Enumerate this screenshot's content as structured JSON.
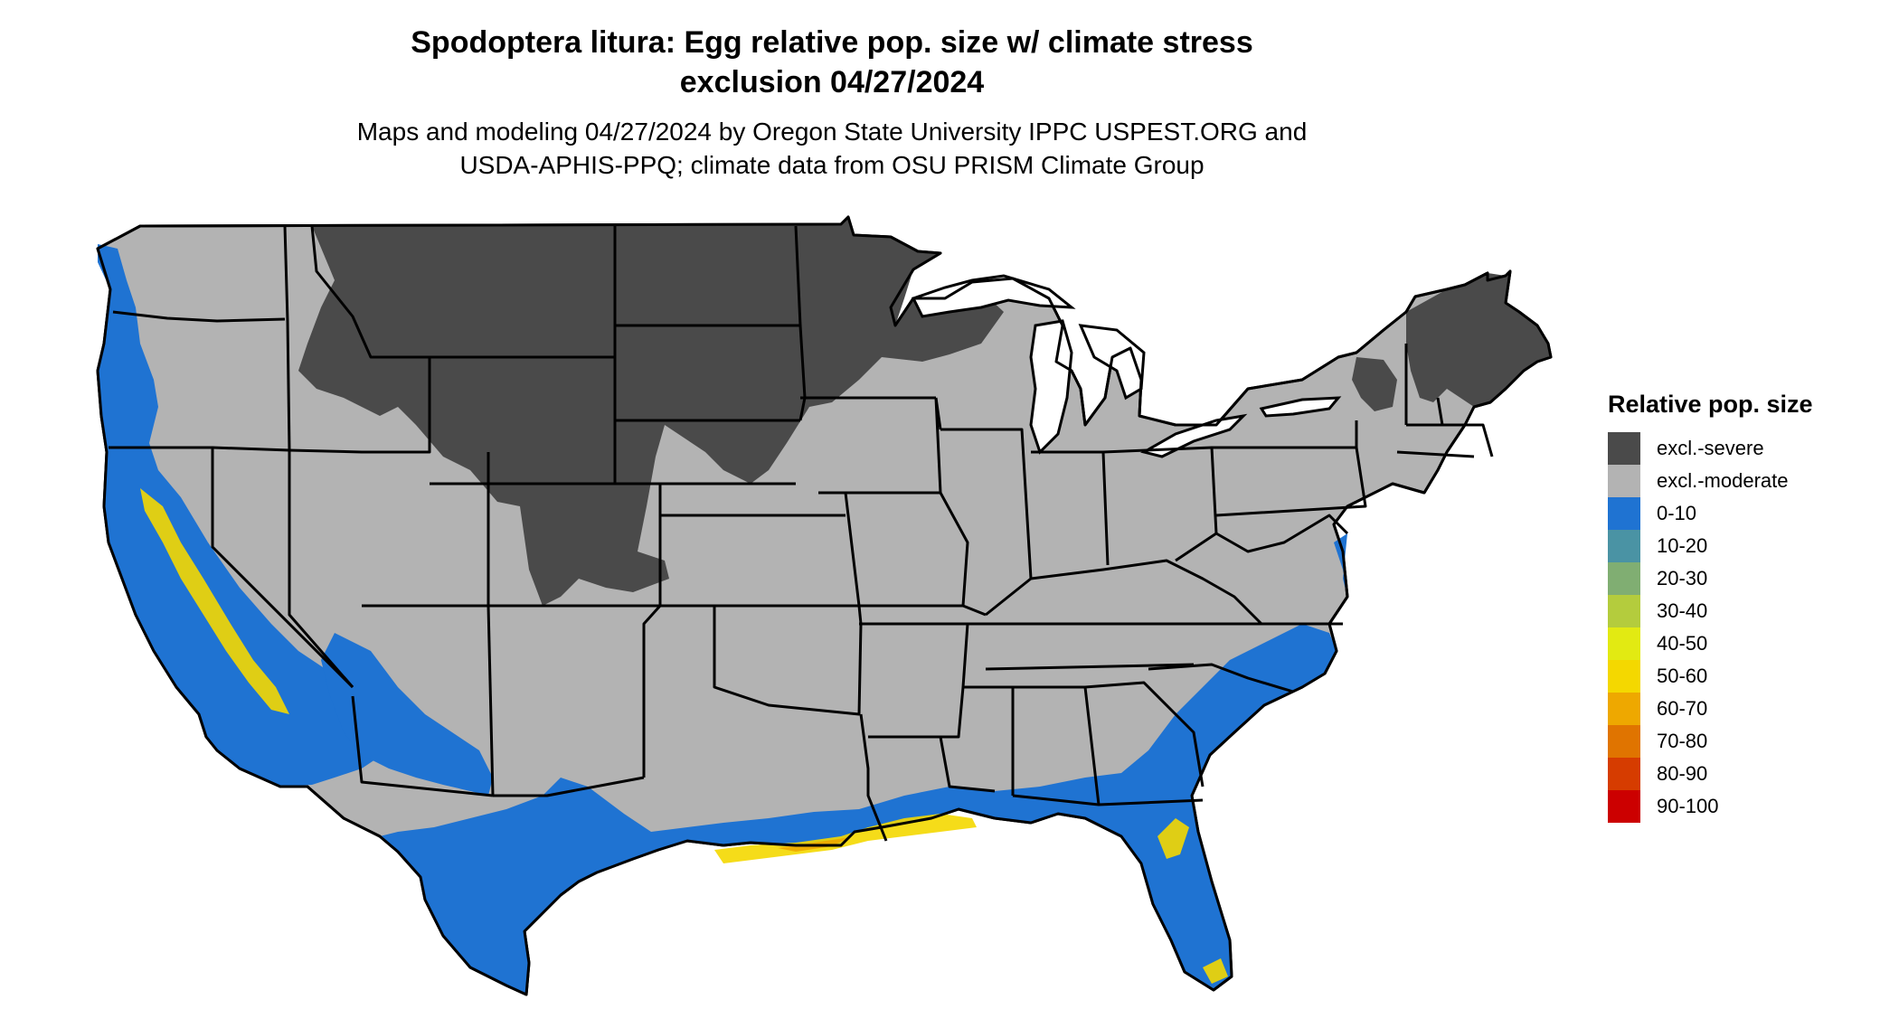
{
  "title": {
    "line1": "Spodoptera litura: Egg relative pop. size w/ climate stress",
    "line2": "exclusion 04/27/2024"
  },
  "subtitle": {
    "line1": "Maps and modeling 04/27/2024 by Oregon State University IPPC USPEST.ORG and",
    "line2": "USDA-APHIS-PPQ; climate data from OSU PRISM Climate Group"
  },
  "legend": {
    "title": "Relative pop. size",
    "items": [
      {
        "label": "excl.-severe",
        "color": "#4a4a4a"
      },
      {
        "label": "excl.-moderate",
        "color": "#b3b3b3"
      },
      {
        "label": "0-10",
        "color": "#1f73d2"
      },
      {
        "label": "10-20",
        "color": "#4a93a4"
      },
      {
        "label": "20-30",
        "color": "#80ae72"
      },
      {
        "label": "30-40",
        "color": "#b4cc3d"
      },
      {
        "label": "40-50",
        "color": "#e2ea12"
      },
      {
        "label": "50-60",
        "color": "#f4d800"
      },
      {
        "label": "60-70",
        "color": "#eea800"
      },
      {
        "label": "70-80",
        "color": "#e07400"
      },
      {
        "label": "80-90",
        "color": "#d63c00"
      },
      {
        "label": "90-100",
        "color": "#cc0000"
      }
    ]
  },
  "colors": {
    "severe": "#4a4a4a",
    "moderate": "#b3b3b3",
    "low": "#1f73d2",
    "mid": "#f4d800",
    "high": "#eea800",
    "border": "#000000"
  }
}
